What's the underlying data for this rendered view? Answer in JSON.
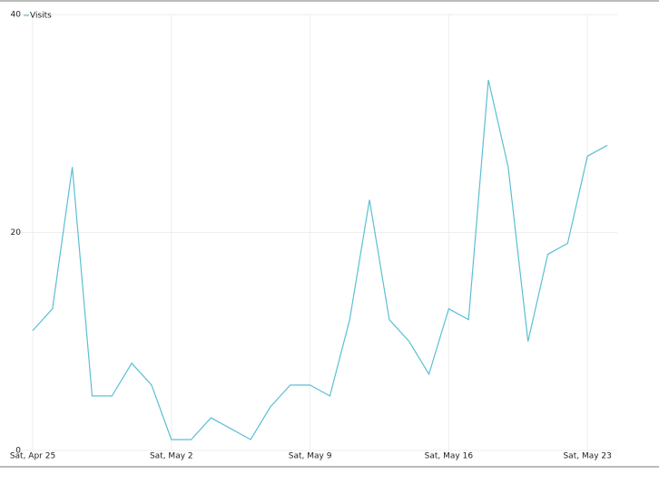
{
  "chart_data": {
    "type": "line",
    "categories": [
      "Sat, Apr 25",
      null,
      null,
      null,
      null,
      null,
      null,
      "Sat, May 2",
      null,
      null,
      null,
      null,
      null,
      null,
      "Sat, May 9",
      null,
      null,
      null,
      null,
      null,
      null,
      "Sat, May 16",
      null,
      null,
      null,
      null,
      null,
      null,
      "Sat, May 23",
      null
    ],
    "series": [
      {
        "name": "Visits",
        "color": "#5bbfd3",
        "values": [
          11,
          13,
          26,
          5,
          5,
          8,
          6,
          1,
          1,
          3,
          2,
          1,
          4,
          6,
          6,
          5,
          12,
          23,
          12,
          10,
          7,
          13,
          12,
          34,
          26,
          10,
          18,
          19,
          27,
          28
        ]
      }
    ],
    "ylim": [
      0,
      40
    ],
    "yticks": [
      0,
      20,
      40
    ],
    "grid": true,
    "legend": "top-left"
  }
}
